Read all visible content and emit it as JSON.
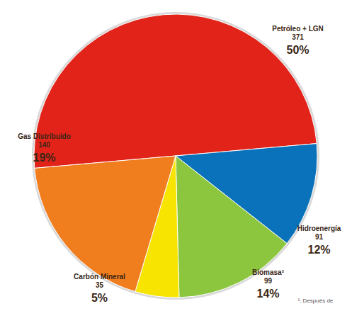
{
  "chart_data": {
    "type": "pie",
    "categories": [
      "Petróleo + LGN",
      "Hidroenergía",
      "Biomasa²",
      "Carbón Mineral",
      "Gas Distribuido"
    ],
    "values": [
      50,
      12,
      14,
      5,
      19
    ],
    "value_labels": [
      "50%",
      "12%",
      "14%",
      "5%",
      "19%"
    ],
    "amounts": [
      371,
      91,
      99,
      35,
      140
    ],
    "colors": [
      "#e2231a",
      "#0a72ba",
      "#8cc63e",
      "#f7e400",
      "#f07d1e"
    ],
    "data_labels": true,
    "note": "¹: Después de"
  }
}
